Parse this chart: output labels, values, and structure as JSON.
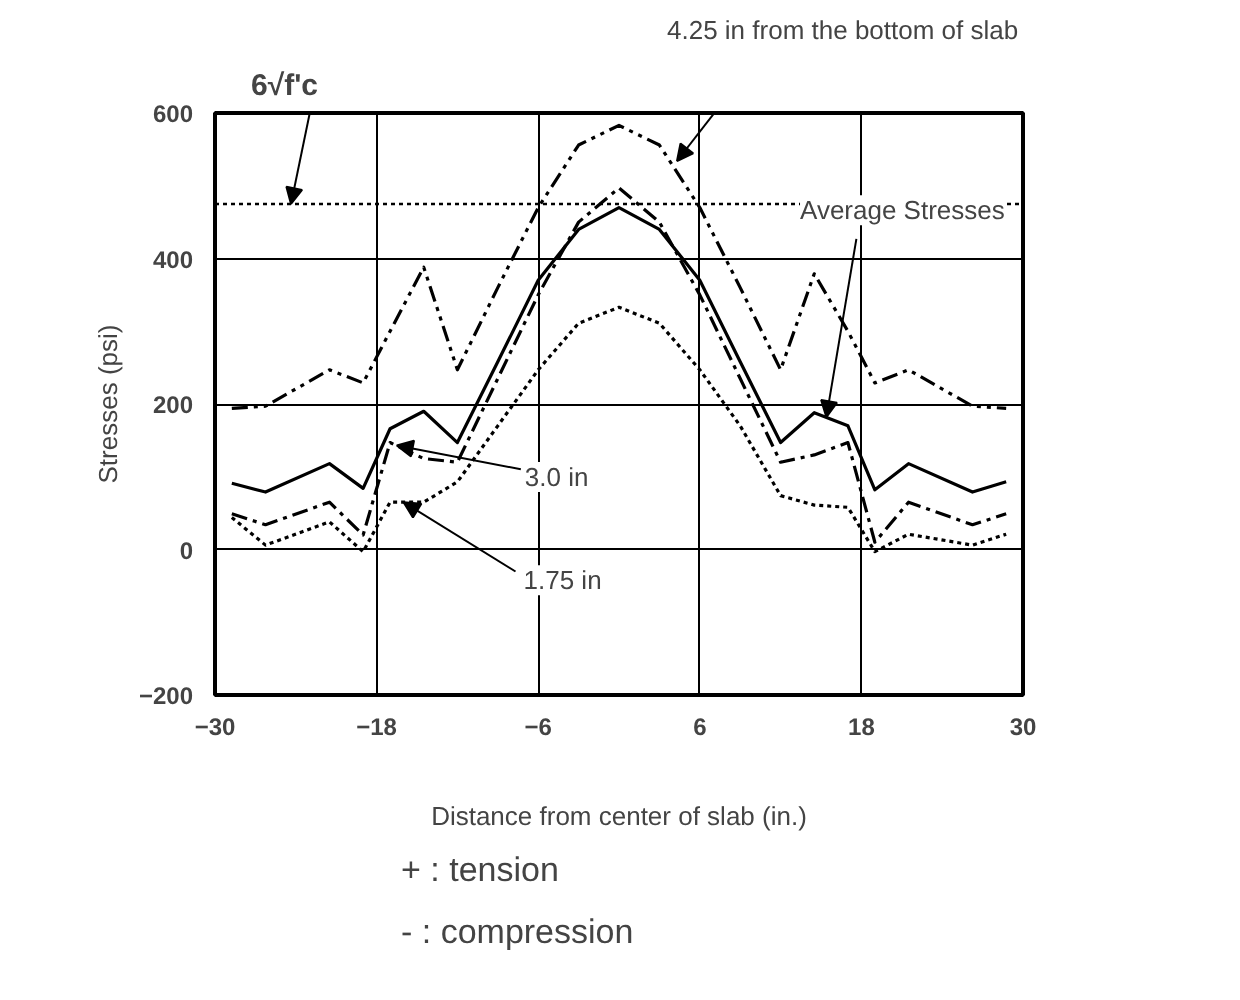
{
  "chart_data": {
    "type": "line",
    "xlabel": "Distance from center of slab (in.)",
    "ylabel": "Stresses (psi)",
    "x": [
      -28.75,
      -26.25,
      -21.5,
      -19,
      -17,
      -14.5,
      -12,
      -9,
      -6,
      -3,
      0,
      3,
      6,
      9,
      12,
      14.5,
      17,
      19,
      21.5,
      26.25,
      28.75
    ],
    "series": [
      {
        "color": "#000000",
        "line_style": "dashdot",
        "values": [
          194,
          197,
          247,
          229,
          300,
          388,
          247,
          360,
          470,
          556,
          583,
          556,
          470,
          360,
          247,
          379,
          300,
          229,
          247,
          197,
          194
        ]
      },
      {
        "color": "#000000",
        "line_style": "dashed",
        "values": [
          49,
          34,
          65,
          20,
          147,
          125,
          120,
          235,
          350,
          450,
          497,
          450,
          350,
          235,
          120,
          130,
          147,
          10,
          65,
          34,
          49
        ]
      },
      {
        "color": "#000000",
        "line_style": "solid",
        "values": [
          91,
          79,
          118,
          84,
          166,
          190,
          147,
          258,
          370,
          440,
          470,
          440,
          370,
          258,
          147,
          188,
          170,
          82,
          118,
          79,
          93
        ]
      },
      {
        "color": "#000000",
        "line_style": "dotted",
        "values": [
          44,
          6,
          38,
          -3,
          65,
          65,
          93,
          170,
          247,
          311,
          333,
          311,
          247,
          170,
          74,
          61,
          58,
          -3,
          21,
          6,
          21
        ]
      }
    ],
    "xlim": [
      -30,
      30
    ],
    "xticks": [
      -30,
      -18,
      -6,
      6,
      18,
      30
    ],
    "ylim": [
      -200,
      600
    ],
    "yticks": [
      -200,
      0,
      200,
      400,
      600
    ],
    "grid": true,
    "ref_lines": [
      {
        "axis": "y",
        "value": 475,
        "label": "6√f'c",
        "line_style": "dotted"
      }
    ],
    "annotations": [
      "4.25 in from the bottom of slab",
      {
        "text": "Average Stresses",
        "x": 15.4,
        "y": 182
      },
      {
        "text": "3.0 in",
        "x": -16.5,
        "y": 143
      },
      {
        "text": "1.75 in",
        "x": -16,
        "y": 65
      },
      "+ : tension",
      "- : compression"
    ]
  }
}
